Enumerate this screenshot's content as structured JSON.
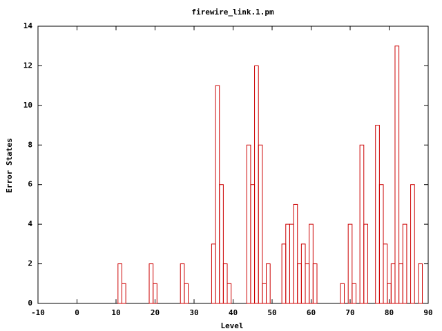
{
  "chart_data": {
    "type": "bar",
    "title": "firewire_link.1.pm",
    "xlabel": "Level",
    "ylabel": "Error States",
    "x": [
      11,
      12,
      19,
      20,
      27,
      28,
      35,
      36,
      37,
      38,
      39,
      44,
      45,
      46,
      47,
      48,
      49,
      53,
      54,
      55,
      56,
      57,
      58,
      59,
      60,
      61,
      68,
      70,
      71,
      73,
      74,
      77,
      78,
      79,
      80,
      81,
      82,
      83,
      84,
      86,
      88
    ],
    "values": [
      2,
      1,
      2,
      1,
      2,
      1,
      3,
      11,
      6,
      2,
      1,
      8,
      6,
      12,
      8,
      1,
      2,
      3,
      4,
      4,
      5,
      2,
      3,
      2,
      4,
      2,
      1,
      4,
      1,
      8,
      4,
      9,
      6,
      3,
      1,
      2,
      13,
      2,
      4,
      6,
      2
    ],
    "color": "#cc0000",
    "xlim": [
      -10,
      90
    ],
    "xticks": [
      -10,
      0,
      10,
      20,
      30,
      40,
      50,
      60,
      70,
      80,
      90
    ],
    "ylim": [
      0,
      14
    ],
    "yticks": [
      0,
      2,
      4,
      6,
      8,
      10,
      12,
      14
    ]
  }
}
